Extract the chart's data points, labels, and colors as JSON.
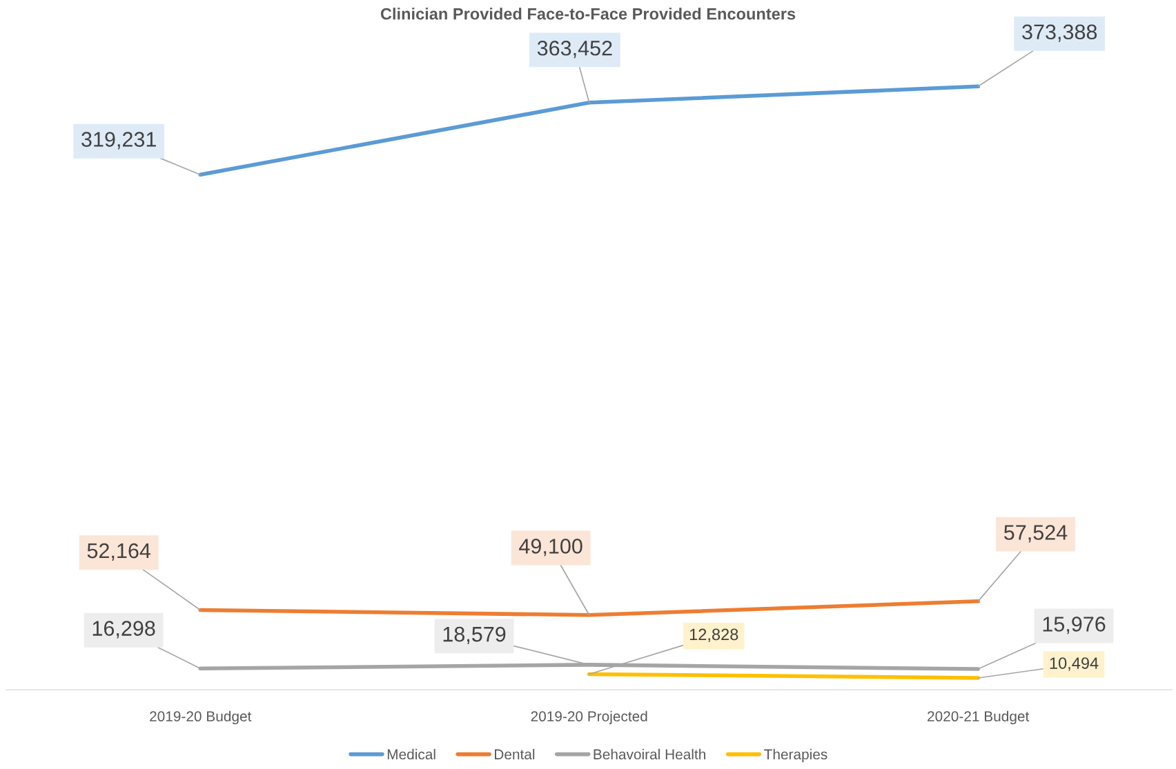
{
  "chart_data": {
    "type": "line",
    "title": "Clinician Provided Face-to-Face Provided Encounters",
    "categories": [
      "2019-20 Budget",
      "2019-20 Projected",
      "2020-21 Budget"
    ],
    "series": [
      {
        "name": "Medical",
        "color": "#5b9bd5",
        "values": [
          319231,
          363452,
          373388
        ],
        "value_labels": [
          "319,231",
          "363,452",
          "373,388"
        ]
      },
      {
        "name": "Dental",
        "color": "#ed7d31",
        "values": [
          52164,
          49100,
          57524
        ],
        "value_labels": [
          "52,164",
          "49,100",
          "57,524"
        ]
      },
      {
        "name": "Behavoiral Health",
        "color": "#a5a5a5",
        "values": [
          16298,
          18579,
          15976
        ],
        "value_labels": [
          "16,298",
          "18,579",
          "15,976"
        ]
      },
      {
        "name": "Therapies",
        "color": "#ffc000",
        "values": [
          null,
          12828,
          10494
        ],
        "value_labels": [
          null,
          "12,828",
          "10,494"
        ]
      }
    ],
    "tick_labels": "x",
    "grid": false,
    "legend": "bottom",
    "marker": "none",
    "line_style": "solid"
  }
}
